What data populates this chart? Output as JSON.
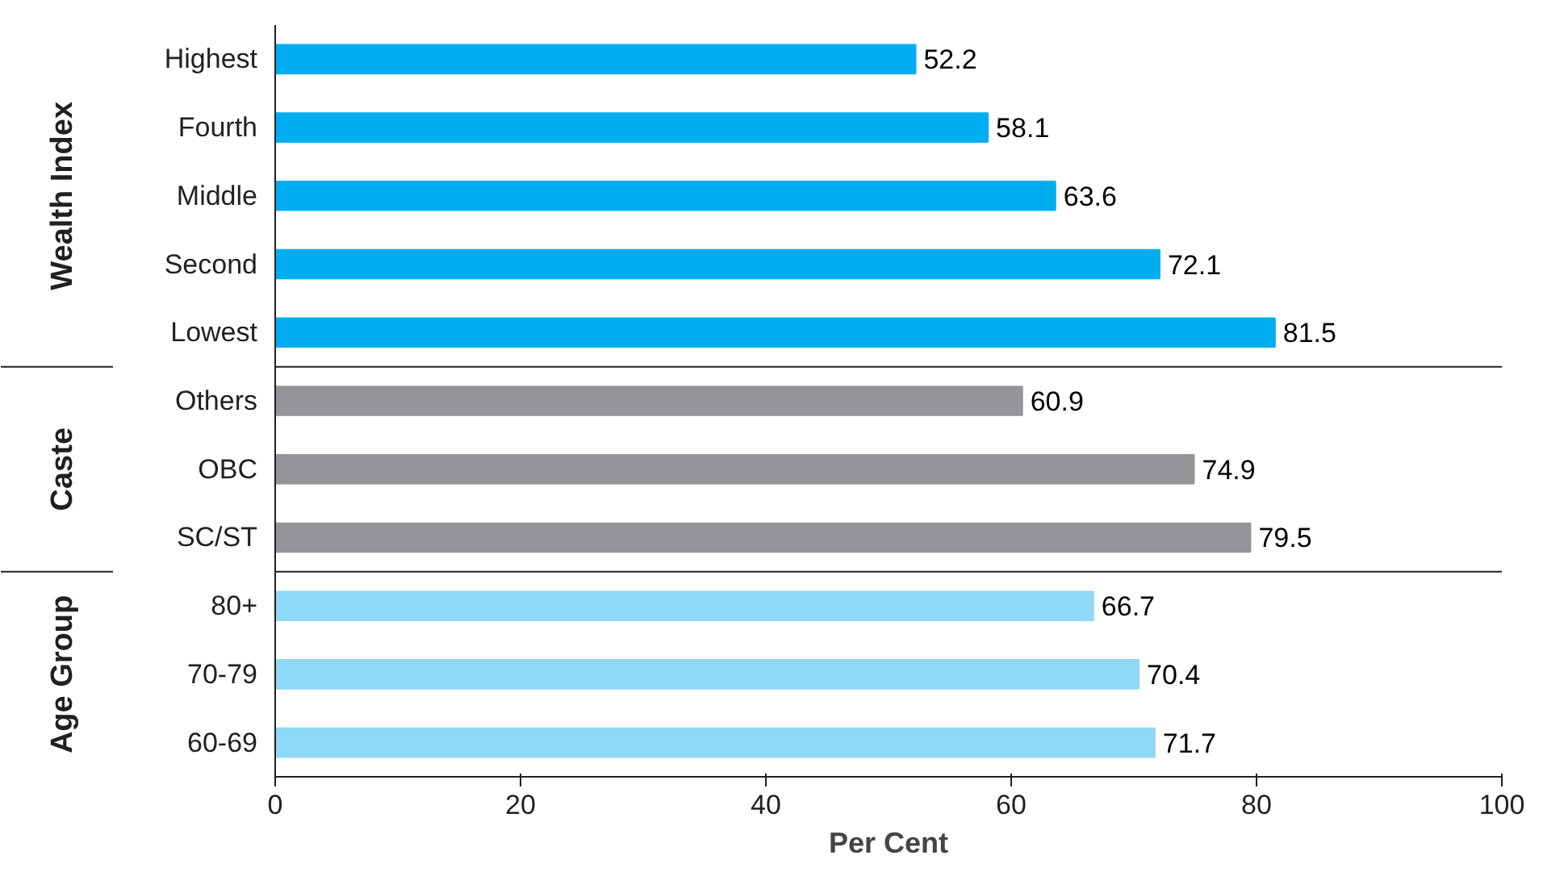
{
  "chart_data": {
    "type": "bar",
    "orientation": "horizontal",
    "xlabel": "Per Cent",
    "categories": [
      "Highest",
      "Fourth",
      "Middle",
      "Second",
      "Lowest",
      "Others",
      "OBC",
      "SC/ST",
      "80+",
      "70-79",
      "60-69"
    ],
    "values": [
      52.2,
      58.1,
      63.6,
      72.1,
      81.5,
      60.9,
      74.9,
      79.5,
      66.7,
      70.4,
      71.7
    ],
    "colors": [
      "#00aeef",
      "#00aeef",
      "#00aeef",
      "#00aeef",
      "#00aeef",
      "#939598",
      "#939598",
      "#939598",
      "#8fd8f8",
      "#8fd8f8",
      "#8fd8f8"
    ],
    "annotations": [
      "Wealth Index",
      "Caste",
      "Age Group"
    ],
    "xlim": [
      0,
      100
    ],
    "xticks": [
      0,
      20,
      40,
      60,
      80,
      100
    ],
    "data_labels": true,
    "grid": false
  }
}
